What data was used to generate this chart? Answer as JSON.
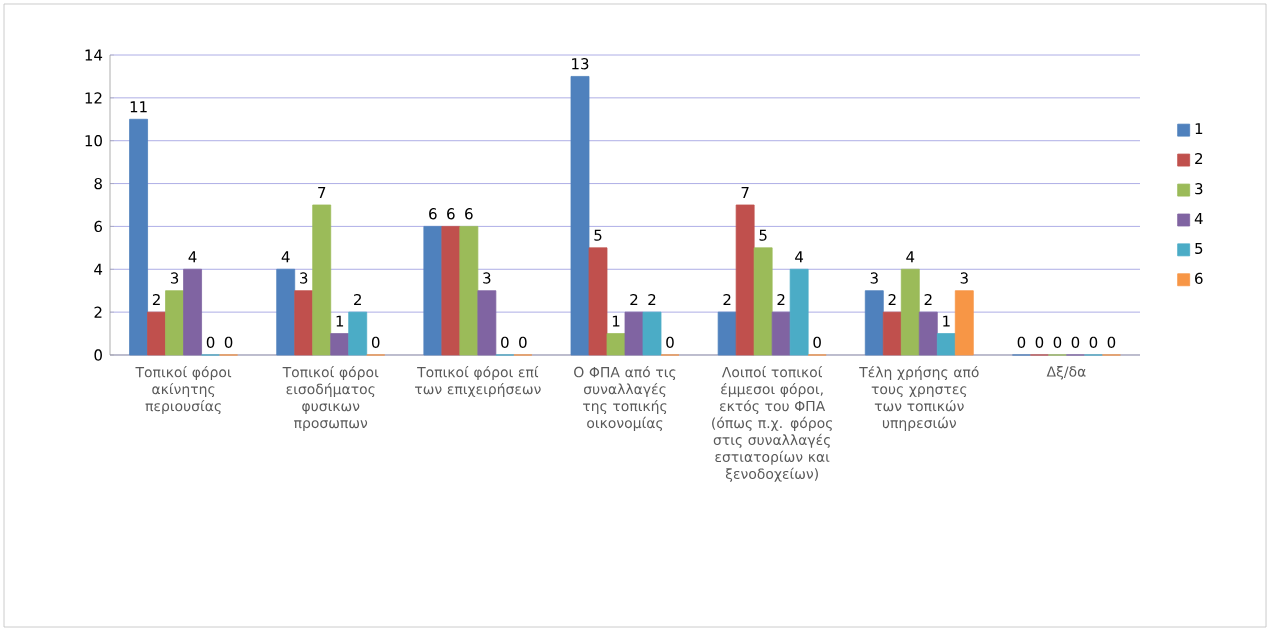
{
  "chart_data": {
    "type": "bar",
    "categories": [
      "Τοπικοί φόροι ακίνητης περιουσίας",
      "Τοπικοί φόροι εισοδήματος φυσικων προσωπων",
      "Τοπικοί φόροι επί των επιχειρήσεων",
      "Ο ΦΠΑ από τις συναλλαγές της τοπικής οικονομίας",
      "Λοιποί τοπικοί έμμεσοι φόροι, εκτός του ΦΠΑ (όπως π.χ. φόρος στις συναλλαγές εστιατορίων και ξενοδοχείων)",
      "Τέλη χρήσης από τους χρηστες των τοπικών υπηρεσιών",
      "Δξ/δα"
    ],
    "series": [
      {
        "name": "1",
        "color": "#4f81bd",
        "values": [
          11,
          4,
          6,
          13,
          2,
          3,
          0
        ]
      },
      {
        "name": "2",
        "color": "#c0504d",
        "values": [
          2,
          3,
          6,
          5,
          7,
          2,
          0
        ]
      },
      {
        "name": "3",
        "color": "#9bbb59",
        "values": [
          3,
          7,
          6,
          1,
          5,
          4,
          0
        ]
      },
      {
        "name": "4",
        "color": "#8064a2",
        "values": [
          4,
          1,
          3,
          2,
          2,
          2,
          0
        ]
      },
      {
        "name": "5",
        "color": "#4bacc6",
        "values": [
          0,
          2,
          0,
          2,
          4,
          1,
          0
        ]
      },
      {
        "name": "6",
        "color": "#f79646",
        "values": [
          0,
          0,
          0,
          0,
          0,
          3,
          0
        ]
      }
    ],
    "ylim": [
      0,
      14
    ],
    "yticks": [
      0,
      2,
      4,
      6,
      8,
      10,
      12,
      14
    ],
    "grid": "y",
    "legend": "right",
    "data_labels": true
  }
}
